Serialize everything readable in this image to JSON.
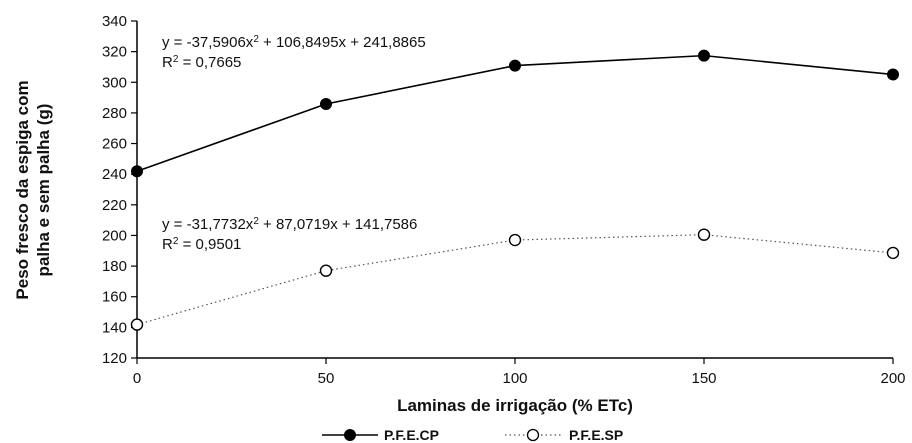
{
  "chart_data": {
    "type": "line",
    "xlabel": "Laminas de irrigação (% ETc)",
    "ylabel_line1": "Peso fresco da espiga com",
    "ylabel_line2": "palha e sem palha (g)",
    "x": [
      0,
      50,
      100,
      150,
      200
    ],
    "xticks": [
      "0",
      "50",
      "100",
      "150",
      "200"
    ],
    "xlim": [
      0,
      200
    ],
    "ylim": [
      120,
      340
    ],
    "yticks": [
      "120",
      "140",
      "160",
      "180",
      "200",
      "220",
      "240",
      "260",
      "280",
      "300",
      "320",
      "340"
    ],
    "grid": false,
    "legend_position": "bottom",
    "series": [
      {
        "name": "P.F.E.CP",
        "values": [
          241.9,
          285.8,
          310.9,
          317.4,
          305.1
        ],
        "marker": "filled-circle",
        "line_style": "solid",
        "color": "#000000",
        "equation": "y = -37,5906x",
        "equation_rest": " + 106,8495x + 241,8865",
        "r2_label": "R",
        "r2_value": " = 0,7665"
      },
      {
        "name": "P.F.E.SP",
        "values": [
          141.8,
          177.0,
          197.0,
          200.5,
          188.6
        ],
        "marker": "open-circle",
        "line_style": "dotted",
        "color": "#000000",
        "equation": "y = -31,7732x",
        "equation_rest": " + 87,0719x + 141,7586",
        "r2_label": "R",
        "r2_value": " = 0,9501"
      }
    ],
    "superscript": "2"
  }
}
